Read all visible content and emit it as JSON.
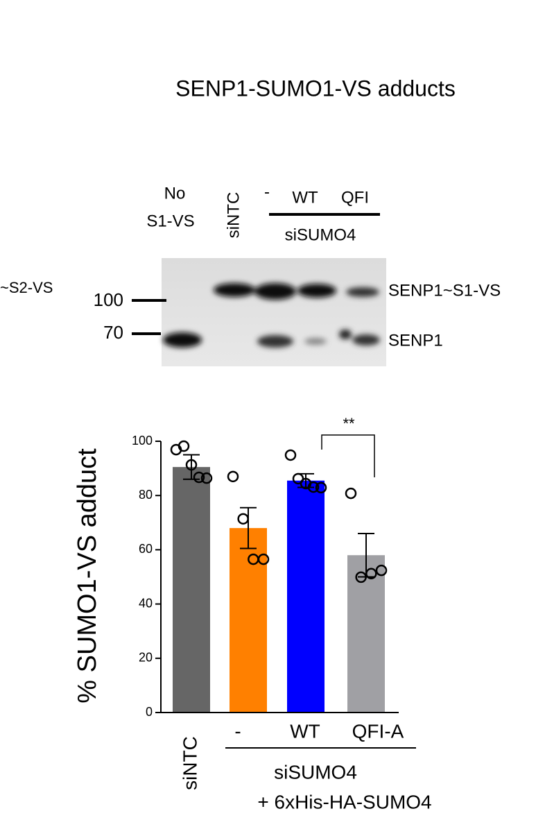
{
  "title": "SENP1-SUMO1-VS adducts",
  "blot": {
    "lane_labels": [
      "No",
      "S1-VS",
      "siNTC",
      "-",
      "WT",
      "QFI"
    ],
    "group_label": "siSUMO4",
    "left_labels": [
      "~S2-VS",
      "100",
      "70"
    ],
    "right_labels": [
      "SENP1~S1-VS",
      "SENP1"
    ]
  },
  "chart_data": {
    "type": "bar",
    "ylabel": "% SUMO1-VS adduct",
    "categories": [
      "siNTC",
      "-",
      "WT",
      "QFI-A"
    ],
    "values": [
      90.5,
      68,
      85.5,
      58
    ],
    "errors": [
      4.5,
      7.5,
      2.5,
      8
    ],
    "colors": [
      "#666666",
      "#ff8000",
      "#0000ff",
      "#a0a0a4"
    ],
    "points": [
      [
        96.9,
        98.2,
        91.3,
        86.7,
        86.4
      ],
      [
        87,
        71.4,
        56.5,
        56.5
      ],
      [
        94.9,
        86.2,
        84.4,
        83.1,
        82.9
      ],
      [
        80.8,
        49.9,
        51.2,
        52.4
      ]
    ],
    "ylim": [
      0,
      100
    ],
    "yticks": [
      0,
      20,
      40,
      60,
      80,
      100
    ],
    "group_labels": [
      "siSUMO4",
      "+ 6xHis-HA-SUMO4"
    ],
    "annotation": "**"
  }
}
